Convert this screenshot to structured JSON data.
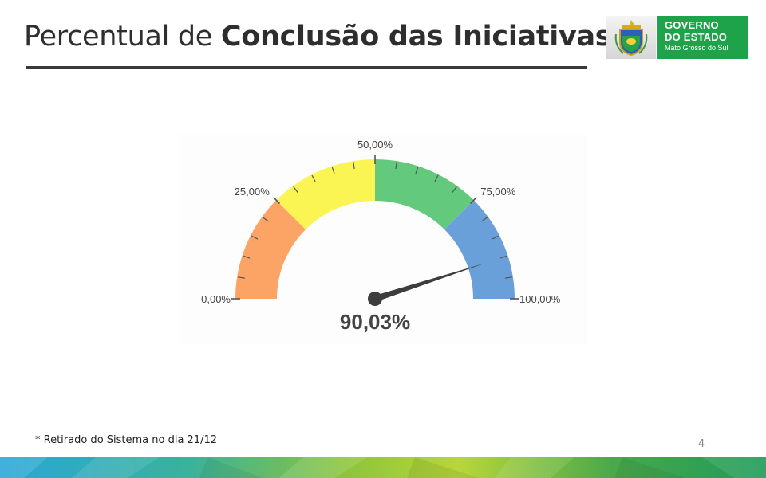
{
  "header": {
    "title_light": "Percentual de ",
    "title_bold": "Conclusão das Iniciativas"
  },
  "logo": {
    "line1": "GOVERNO",
    "line2": "DO ESTADO",
    "line3": "Mato Grosso do Sul",
    "crest_icon": "state-coat-of-arms-icon",
    "green": "#1fa34a"
  },
  "chart_data": {
    "type": "gauge",
    "min": 0,
    "max": 100,
    "value": 90.03,
    "value_label": "90,03%",
    "tick_labels": [
      {
        "value": 0,
        "label": "0,00%"
      },
      {
        "value": 25,
        "label": "25,00%"
      },
      {
        "value": 50,
        "label": "50,00%"
      },
      {
        "value": 75,
        "label": "75,00%"
      },
      {
        "value": 100,
        "label": "100,00%"
      }
    ],
    "bands": [
      {
        "from": 0,
        "to": 25,
        "color": "#fca366"
      },
      {
        "from": 25,
        "to": 50,
        "color": "#fbf554"
      },
      {
        "from": 50,
        "to": 75,
        "color": "#63c97d"
      },
      {
        "from": 75,
        "to": 100,
        "color": "#6aa0d9"
      }
    ],
    "minor_tick_step": 5
  },
  "footer": {
    "note": "* Retirado do Sistema no dia 21/12",
    "page_number": "4"
  }
}
